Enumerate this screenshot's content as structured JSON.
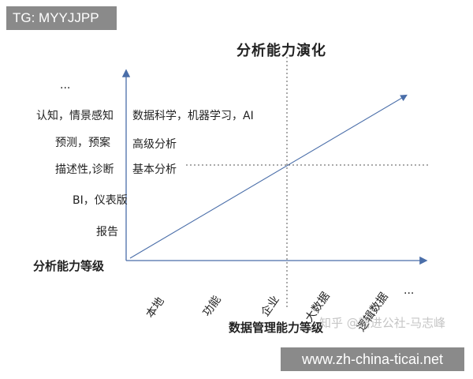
{
  "header_badge": "TG: MYYJJPP",
  "title": "分析能力演化",
  "y_axis_label": "分析能力等级",
  "x_axis_label": "数据管理能力等级",
  "y_levels_left": [
    "...",
    "认知，情景感知",
    "预测，预案",
    "描述性,诊断",
    "BI，仪表版",
    "报告"
  ],
  "y_levels_right": [
    "数据科学，机器学习，AI",
    "高级分析",
    "基本分析"
  ],
  "x_ticks": [
    "本地",
    "功能",
    "企业",
    "大数据",
    "逻辑数据",
    "..."
  ],
  "watermark": "知乎 @精进公社-马志峰",
  "site_badge": "www.zh-china-ticai.net",
  "colors": {
    "axis": "#4a6ea9",
    "trend": "#4a6ea9",
    "dashed": "#555555"
  }
}
